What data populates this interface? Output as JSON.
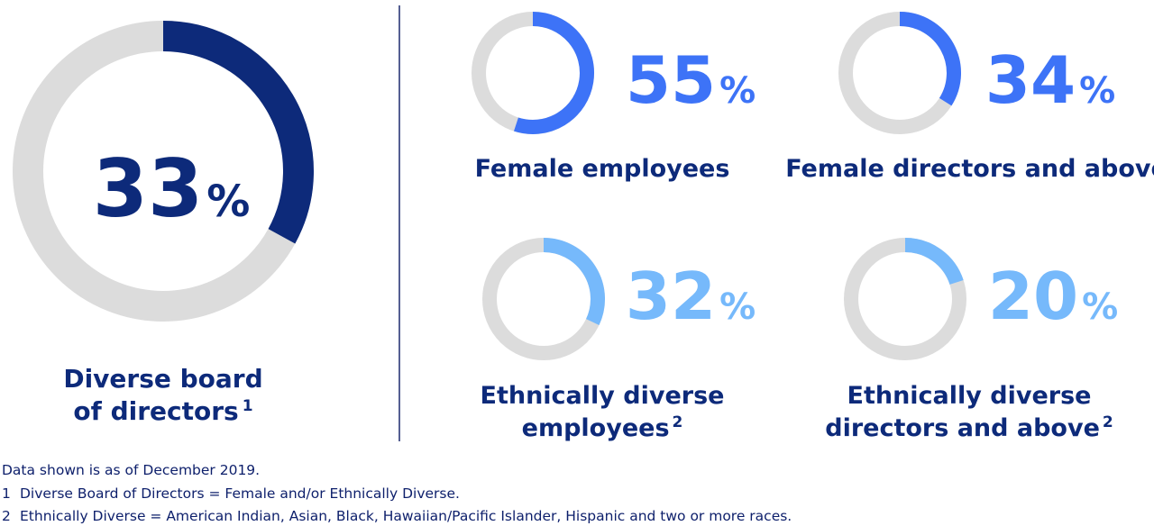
{
  "colors": {
    "track": "#dcdcdc",
    "navy": "#0d2a7a",
    "blue": "#3d73f7",
    "light_blue": "#76b9fb",
    "text_dark": "#0d1f6b",
    "divider": "#1d2a6e"
  },
  "chart_data": [
    {
      "type": "pie",
      "style": "donut",
      "value": 33,
      "unit": "%",
      "label_lines": [
        "Diverse board",
        "of directors"
      ],
      "footnote_ref": "1",
      "color": "#0d2a7a",
      "value_color": "#0d2a7a"
    },
    {
      "type": "pie",
      "style": "donut",
      "value": 55,
      "unit": "%",
      "label_lines": [
        "Female employees"
      ],
      "footnote_ref": "",
      "color": "#3d73f7",
      "value_color": "#3d73f7"
    },
    {
      "type": "pie",
      "style": "donut",
      "value": 34,
      "unit": "%",
      "label_lines": [
        "Female directors and above"
      ],
      "footnote_ref": "",
      "color": "#3d73f7",
      "value_color": "#3d73f7"
    },
    {
      "type": "pie",
      "style": "donut",
      "value": 32,
      "unit": "%",
      "label_lines": [
        "Ethnically diverse",
        "employees"
      ],
      "footnote_ref": "2",
      "color": "#76b9fb",
      "value_color": "#76b9fb"
    },
    {
      "type": "pie",
      "style": "donut",
      "value": 20,
      "unit": "%",
      "label_lines": [
        "Ethnically diverse",
        "directors and above"
      ],
      "footnote_ref": "2",
      "color": "#76b9fb",
      "value_color": "#76b9fb"
    }
  ],
  "footnotes": {
    "intro": "Data shown is as of December 2019.",
    "items": [
      {
        "num": "1",
        "text": "Diverse Board of Directors = Female and/or Ethnically Diverse."
      },
      {
        "num": "2",
        "text": "Ethnically Diverse = American Indian, Asian, Black, Hawaiian/Pacific Islander, Hispanic and two or more races."
      }
    ]
  }
}
